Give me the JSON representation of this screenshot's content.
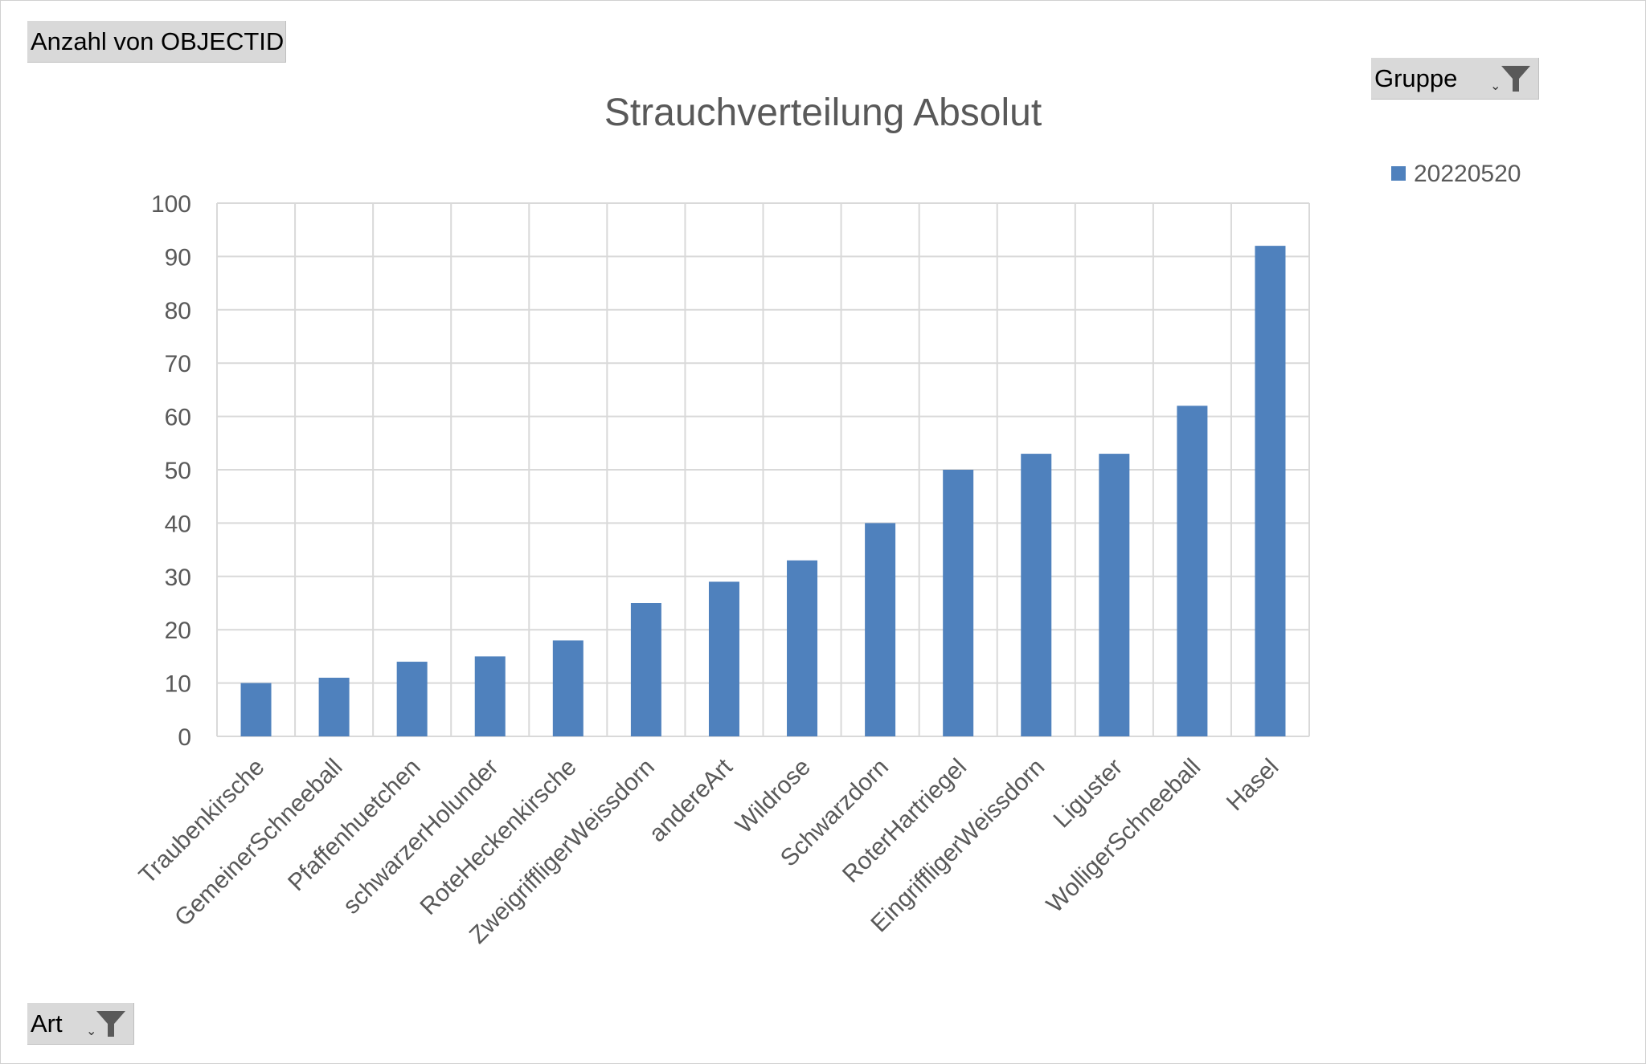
{
  "value_field": {
    "label": "Anzahl von OBJECTID"
  },
  "legend_field": {
    "label": "Gruppe",
    "dropdown_icon": "filter-funnel-icon"
  },
  "axis_field": {
    "label": "Art",
    "dropdown_icon": "filter-funnel-icon"
  },
  "colors": {
    "bar": "#4f81bd",
    "grid": "#d9d9d9",
    "text": "#595959",
    "button_bg": "#d9d9d9"
  },
  "chart_data": {
    "type": "bar",
    "title": "Strauchverteilung Absolut",
    "xlabel": "",
    "ylabel": "",
    "ylim": [
      0,
      100
    ],
    "yticks": [
      0,
      10,
      20,
      30,
      40,
      50,
      60,
      70,
      80,
      90,
      100
    ],
    "grid": true,
    "legend_position": "top-right",
    "categories": [
      "Traubenkirsche",
      "GemeinerSchneeball",
      "Pfaffenhuetchen",
      "schwarzerHolunder",
      "RoteHeckenkirsche",
      "ZweigriffligerWeissdorn",
      "andereArt",
      "Wildrose",
      "Schwarzdorn",
      "RoterHartriegel",
      "EingriffligerWeissdorn",
      "Liguster",
      "WolligerSchneeball",
      "Hasel"
    ],
    "series": [
      {
        "name": "20220520",
        "color": "#4f81bd",
        "values": [
          10,
          11,
          14,
          15,
          18,
          25,
          29,
          33,
          40,
          50,
          53,
          53,
          62,
          92
        ]
      }
    ]
  }
}
